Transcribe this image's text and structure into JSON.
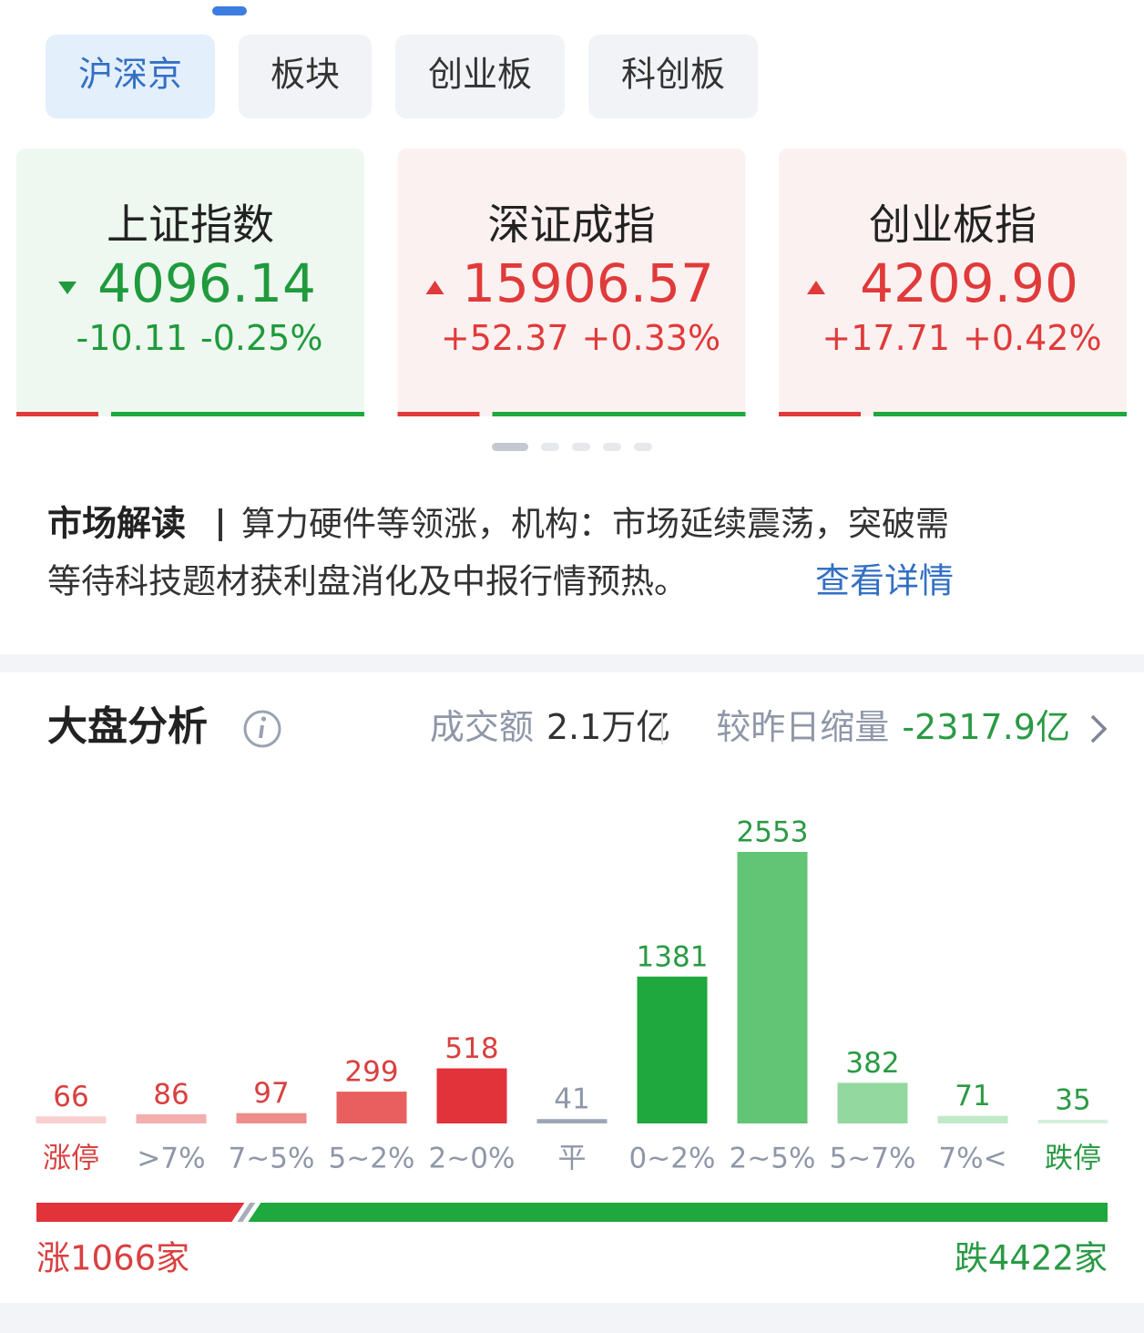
{
  "tabs": [
    "沪深京",
    "板块",
    "创业板",
    "科创板"
  ],
  "indices": [
    {
      "name": "上证指数",
      "price": "4096.14",
      "change": "-10.11",
      "pct": "-0.25%",
      "direction": "down"
    },
    {
      "name": "深证成指",
      "price": "15906.57",
      "change": "+52.37",
      "pct": "+0.33%",
      "direction": "up"
    },
    {
      "name": "创业板指",
      "price": "4209.90",
      "change": "+17.71",
      "pct": "+0.42%",
      "direction": "up"
    }
  ],
  "market_reading": {
    "label": "市场解读",
    "lines": [
      "算力硬件等领涨，机构：市场延续震荡，突破需",
      "等待科技题材获利盘消化及中报行情预热。"
    ],
    "link": "查看详情"
  },
  "analysis": {
    "title": "大盘分析",
    "turnover_label": "成交额",
    "turnover": "2.1万亿",
    "compare_label": "较昨日缩量",
    "compare": "-2317.9亿"
  },
  "chart_data": {
    "type": "bar",
    "categories": [
      "涨停",
      ">7%",
      "7~5%",
      "5~2%",
      "2~0%",
      "平",
      "0~2%",
      "2~5%",
      "5~7%",
      "7%<",
      "跌停"
    ],
    "values": [
      66,
      86,
      97,
      299,
      518,
      41,
      1381,
      2553,
      382,
      71,
      35
    ],
    "colors": [
      "#f9cfcf",
      "#f3aeae",
      "#ee8c8c",
      "#e95f5f",
      "#e2333a",
      "#9da5b5",
      "#1fa83d",
      "#62c475",
      "#93d89e",
      "#c1e9c8",
      "#d6f1db"
    ],
    "value_colors": [
      "#d94040",
      "#d94040",
      "#d94040",
      "#d94040",
      "#d94040",
      "#8f97a8",
      "#2a9a44",
      "#2a9a44",
      "#2a9a44",
      "#2a9a44",
      "#2a9a44"
    ],
    "category_colors": [
      "#d94040",
      "#8f97a8",
      "#8f97a8",
      "#8f97a8",
      "#8f97a8",
      "#8f97a8",
      "#8f97a8",
      "#8f97a8",
      "#8f97a8",
      "#8f97a8",
      "#2a9a44"
    ]
  },
  "breadth": {
    "up": 1066,
    "up_label": "涨1066家",
    "down": 4422,
    "down_label": "跌4422家"
  }
}
